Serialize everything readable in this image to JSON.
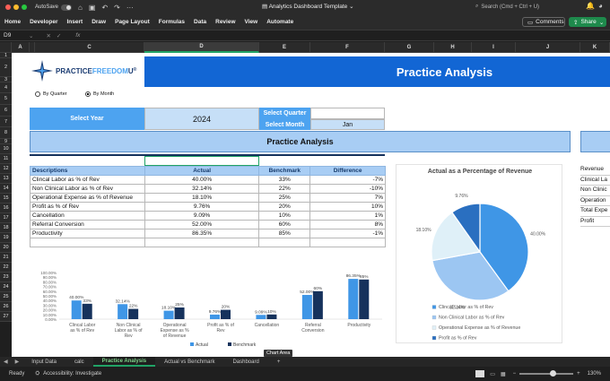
{
  "titlebar": {
    "autosave": "AutoSave",
    "title": "Analytics Dashboard Template",
    "search_placeholder": "Search (Cmd + Ctrl + U)"
  },
  "ribbon": {
    "tabs": [
      "Home",
      "Developer",
      "Insert",
      "Draw",
      "Page Layout",
      "Formulas",
      "Data",
      "Review",
      "View",
      "Automate"
    ],
    "comments": "Comments",
    "share": "Share"
  },
  "formula": {
    "cell": "D9",
    "fx": "fx"
  },
  "columns": [
    "A",
    "B",
    "C",
    "D",
    "E",
    "F",
    "G",
    "H",
    "I",
    "J",
    "K"
  ],
  "rows": [
    "1",
    "2",
    "3",
    "4",
    "5",
    "6",
    "7",
    "8",
    "9",
    "10",
    "11",
    "12",
    "13",
    "14",
    "15",
    "16",
    "17",
    "18",
    "19",
    "20",
    "21",
    "22",
    "23",
    "24",
    "25",
    "26",
    "27"
  ],
  "logo": {
    "text_a": "PRACTICE",
    "text_b": "FREEDOM",
    "text_c": "U",
    "mark": "®"
  },
  "header": {
    "title": "Practice Analysis"
  },
  "radios": {
    "by_quarter": "By Quarter",
    "by_month": "By Month"
  },
  "select": {
    "year_label": "Select Year",
    "year_value": "2024",
    "quarter_label": "Select Quarter",
    "quarter_value": "",
    "month_label": "Select Month",
    "month_value": "Jan"
  },
  "section": {
    "title": "Practice Analysis"
  },
  "table": {
    "headers": [
      "Descriptions",
      "Actual",
      "Benchmark",
      "Difference"
    ],
    "rows": [
      [
        "Clincal Labor as % of Rev",
        "40.00%",
        "33%",
        "-7%"
      ],
      [
        "Non Clinical Labor as % of Rev",
        "32.14%",
        "22%",
        "-10%"
      ],
      [
        "Operational Expense as % of Revenue",
        "18.10%",
        "25%",
        "7%"
      ],
      [
        "Profit as % of Rev",
        "9.76%",
        "20%",
        "10%"
      ],
      [
        "Cancellation",
        "9.09%",
        "10%",
        "1%"
      ],
      [
        "Referral Conversion",
        "52.00%",
        "60%",
        "8%"
      ],
      [
        "Productivity",
        "86.35%",
        "85%",
        "-1%"
      ]
    ]
  },
  "right_panel": {
    "items": [
      "Revenue",
      "Clinical La",
      "Non Clinic",
      "Operation",
      "Total Expe",
      "Profit"
    ]
  },
  "chart_data": [
    {
      "type": "bar",
      "title": "",
      "categories": [
        "Clincal Labor as % of Rev",
        "Non Clinical Labor as % of Rev",
        "Operational Expense as % of Revenue",
        "Profit as % of Rev",
        "Cancellation",
        "Referral Conversion",
        "Productivity"
      ],
      "series": [
        {
          "name": "Actual",
          "values": [
            40.0,
            32.14,
            18.1,
            9.76,
            9.09,
            52.0,
            86.35
          ],
          "labels": [
            "40.00%",
            "32.14%",
            "18.10%",
            "9.76%",
            "9.09%",
            "52.00%",
            "86.35%"
          ],
          "color": "#3f96e6"
        },
        {
          "name": "Benchmark",
          "values": [
            33,
            22,
            25,
            20,
            10,
            60,
            85
          ],
          "labels": [
            "33%",
            "22%",
            "25%",
            "20%",
            "10%",
            "60%",
            "85%"
          ],
          "color": "#16325c"
        }
      ],
      "yticks": [
        "100.00%",
        "90.00%",
        "80.00%",
        "70.00%",
        "60.00%",
        "50.00%",
        "40.00%",
        "30.00%",
        "20.00%",
        "10.00%",
        "0.00%"
      ],
      "ylim": [
        0,
        100
      ]
    },
    {
      "type": "pie",
      "title": "Actual as a Percentage of Revenue",
      "labels": [
        "Clincal Labor as % of Rev",
        "Non Clinical Labor as % of Rev",
        "Operational Expense as % of Revenue",
        "Profit as % of Rev"
      ],
      "values": [
        40.0,
        32.14,
        18.1,
        9.76
      ],
      "value_labels": [
        "40.00%",
        "32.14%",
        "18.10%",
        "9.76%"
      ],
      "colors": [
        "#3f96e6",
        "#9cc6f2",
        "#dff0f8",
        "#2a6fc0"
      ]
    }
  ],
  "tooltip": "Chart Area",
  "sheets": [
    "Input Data",
    "calc",
    "Practice Analysis",
    "Actual vs Benchmark",
    "Dashboard"
  ],
  "status": {
    "ready": "Ready",
    "accessibility": "Accessibility: Investigate",
    "zoom": "130%"
  }
}
